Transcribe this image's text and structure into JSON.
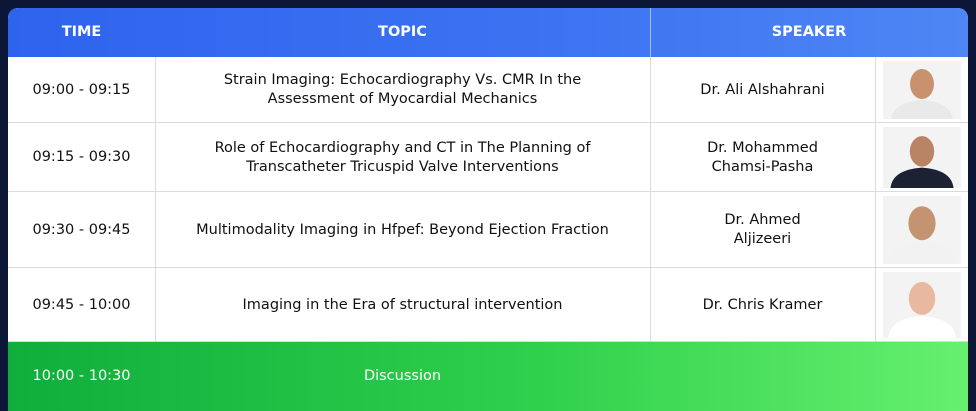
{
  "header": {
    "columns": [
      "TIME",
      "TOPIC",
      "SPEAKER"
    ]
  },
  "table": {
    "rows": [
      [
        "09:00 - 09:15",
        "Strain Imaging: Echocardiography Vs. CMR In the Assessment of Myocardial Mechanics",
        "Dr. Ali Alshahrani"
      ],
      [
        "09:15 - 09:30",
        "Role of Echocardiography and CT in The Planning of Transcatheter Tricuspid Valve Interventions",
        "Dr. Mohammed Chamsi-Pasha"
      ],
      [
        "09:30 - 09:45",
        "Multimodality Imaging in Hfpef: Beyond Ejection Fraction",
        "Dr. Ahmed Aljizeeri"
      ],
      [
        "09:45 - 10:00",
        "Imaging in the Era of structural intervention",
        "Dr. Chris Kramer"
      ]
    ]
  },
  "footer": {
    "time": "10:00 - 10:30",
    "topic": "Discussion"
  }
}
